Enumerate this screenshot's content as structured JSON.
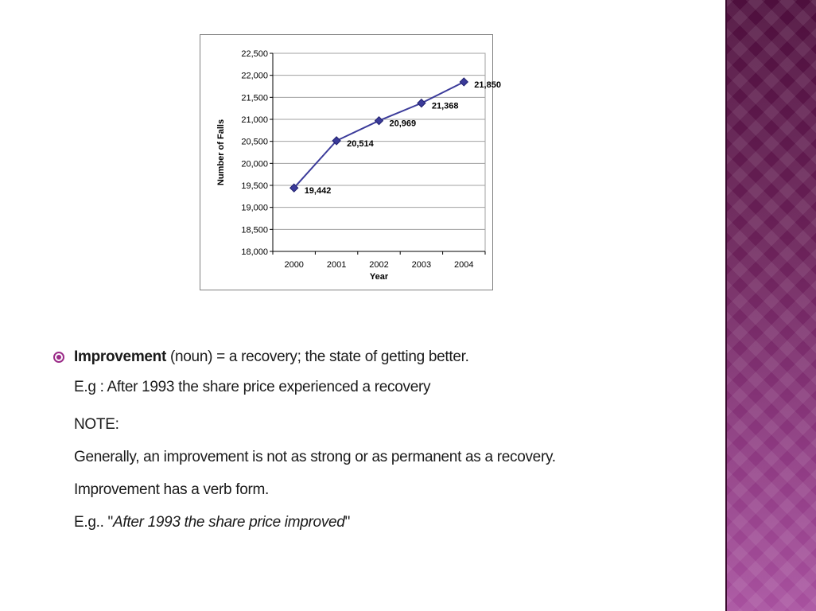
{
  "chart_data": {
    "type": "line",
    "xlabel": "Year",
    "ylabel": "Number of Falls",
    "categories": [
      "2000",
      "2001",
      "2002",
      "2003",
      "2004"
    ],
    "series": [
      {
        "values": [
          19442,
          20514,
          20969,
          21368,
          21850
        ]
      }
    ],
    "data_labels": [
      "19,442",
      "20,514",
      "20,969",
      "21,368",
      "21,850"
    ],
    "y_ticks": [
      18000,
      18500,
      19000,
      19500,
      20000,
      20500,
      21000,
      21500,
      22000,
      22500
    ],
    "y_tick_labels": [
      "18,000",
      "18,500",
      "19,000",
      "19,500",
      "20,000",
      "20,500",
      "21,000",
      "21,500",
      "22,000",
      "22,500"
    ],
    "ylim": [
      18000,
      22500
    ],
    "grid": true,
    "legend": "none",
    "line_color": "#3b3b9a",
    "marker": "diamond"
  },
  "content": {
    "term": "Improvement",
    "definition": " (noun) = a recovery; the state of getting better.",
    "example": "E.g : After 1993 the share price experienced a recovery",
    "note_heading": "NOTE:",
    "note_line1": "Generally, an improvement is not as strong or as permanent as a recovery.",
    "note_line2": "Improvement has a verb form.",
    "example2_prefix": "E.g.. \"",
    "example2_italic": "After 1993 the share price improved",
    "example2_suffix": "\""
  },
  "colors": {
    "bullet": "#9b2c88",
    "side_band": "#6a2158"
  }
}
